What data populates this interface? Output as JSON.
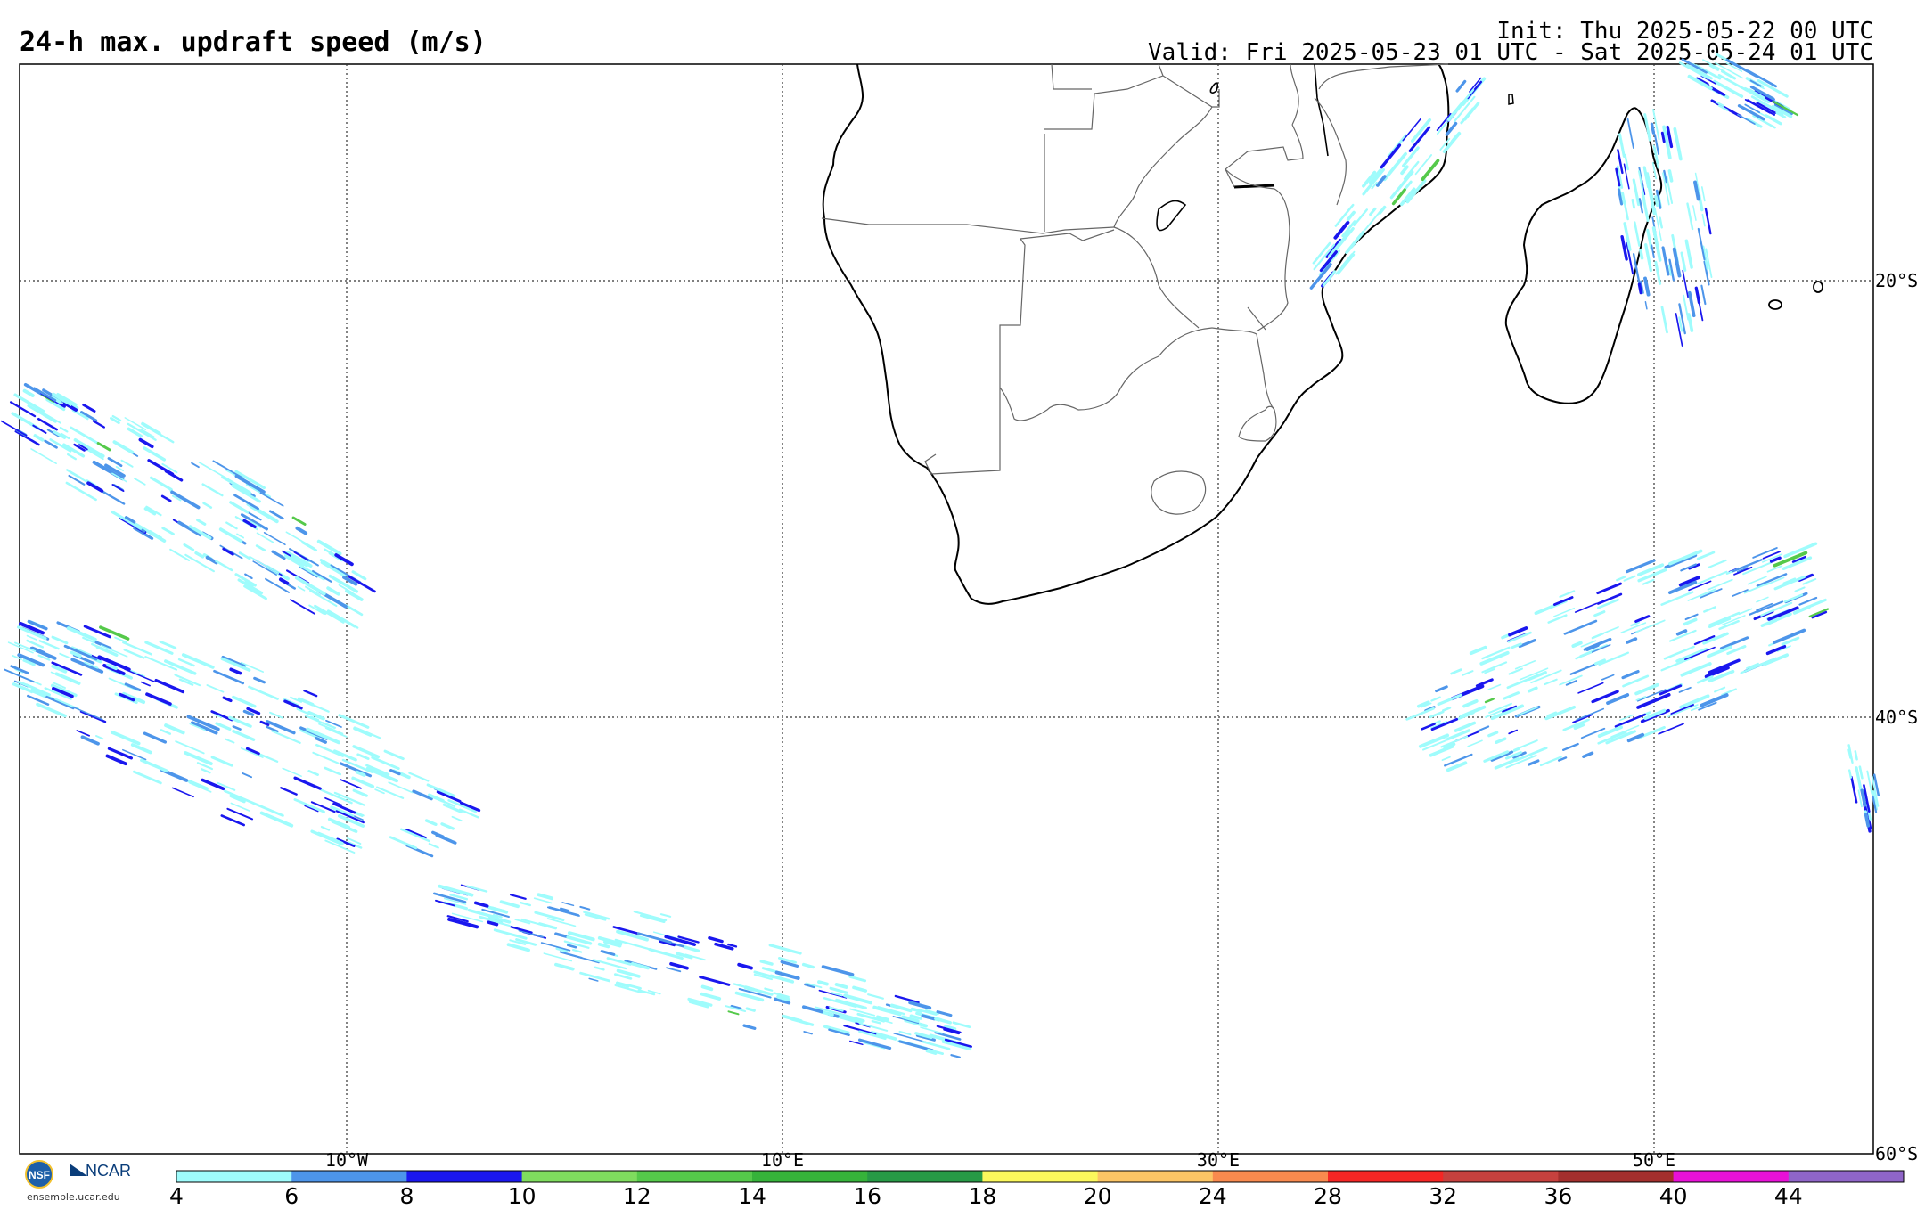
{
  "header": {
    "title": "24-h max. updraft speed (m/s)",
    "init": "Init: Thu 2025-05-22 00 UTC",
    "valid": "Valid: Fri 2025-05-23 01 UTC - Sat 2025-05-24 01 UTC"
  },
  "axes": {
    "lon_labels": [
      "10°W",
      "10°E",
      "30°E",
      "50°E"
    ],
    "lat_labels": [
      "20°S",
      "40°S",
      "60°S"
    ]
  },
  "colorbar": {
    "ticks": [
      "4",
      "6",
      "8",
      "10",
      "12",
      "14",
      "16",
      "18",
      "20",
      "24",
      "28",
      "32",
      "36",
      "40",
      "44"
    ],
    "colors": [
      "#9ffcfc",
      "#4d95ea",
      "#1a17ee",
      "#7fdc5e",
      "#55c94a",
      "#36b33a",
      "#279a46",
      "#fcf85c",
      "#fcc565",
      "#f98a4e",
      "#f52624",
      "#c6413e",
      "#a32f2d",
      "#e811d7",
      "#8f65c8"
    ]
  },
  "logos": {
    "nsf": "NSF",
    "ncar": "NCAR",
    "url": "ensemble.ucar.edu"
  }
}
